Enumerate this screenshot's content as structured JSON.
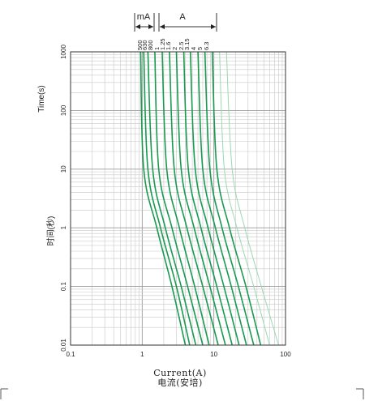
{
  "chart_data": {
    "type": "line",
    "title": "",
    "xscale": "log",
    "yscale": "log",
    "xlim": [
      0.1,
      100
    ],
    "ylim": [
      0.01,
      1000
    ],
    "xlabel": "Current(A)",
    "xlabel_cn": "电流(安培)",
    "ylabel": "Time(s)",
    "ylabel_cn": "时间(秒)",
    "xticks": [
      "0.1",
      "1",
      "10",
      "100"
    ],
    "yticks": [
      "1000",
      "100",
      "10",
      "1",
      "0.1",
      "0.01"
    ],
    "unit_groups": [
      {
        "label": "mA",
        "ratings": [
          "500",
          "630",
          "800"
        ]
      },
      {
        "label": "A",
        "ratings": [
          "1",
          "1.25",
          "1.6",
          "2",
          "2.5",
          "3.15",
          "4",
          "5",
          "6.3"
        ]
      }
    ],
    "grid": true,
    "colors": {
      "curve": "#1a9a50",
      "curve_light": "#9bd8b0",
      "grid": "#c8c8c8",
      "frame": "#333333"
    },
    "series": [
      {
        "name": "500",
        "points": [
          [
            0.95,
            1000
          ],
          [
            1.05,
            10
          ],
          [
            1.6,
            1
          ],
          [
            2.6,
            0.1
          ],
          [
            4.0,
            0.01
          ]
        ]
      },
      {
        "name": "630",
        "points": [
          [
            1.05,
            1000
          ],
          [
            1.2,
            10
          ],
          [
            1.8,
            1
          ],
          [
            3.0,
            0.1
          ],
          [
            4.6,
            0.01
          ]
        ]
      },
      {
        "name": "800",
        "points": [
          [
            1.2,
            1000
          ],
          [
            1.4,
            10
          ],
          [
            2.1,
            1
          ],
          [
            3.5,
            0.1
          ],
          [
            5.6,
            0.01
          ]
        ]
      },
      {
        "name": "1",
        "points": [
          [
            1.5,
            1000
          ],
          [
            1.7,
            10
          ],
          [
            2.6,
            1
          ],
          [
            4.3,
            0.1
          ],
          [
            7.0,
            0.01
          ]
        ]
      },
      {
        "name": "1.25",
        "points": [
          [
            1.9,
            1000
          ],
          [
            2.2,
            10
          ],
          [
            3.3,
            1
          ],
          [
            5.4,
            0.1
          ],
          [
            8.6,
            0.01
          ]
        ]
      },
      {
        "name": "1.6",
        "points": [
          [
            2.4,
            1000
          ],
          [
            2.8,
            10
          ],
          [
            4.2,
            1
          ],
          [
            7.0,
            0.1
          ],
          [
            11.5,
            0.01
          ]
        ]
      },
      {
        "name": "2",
        "points": [
          [
            3.0,
            1000
          ],
          [
            3.5,
            10
          ],
          [
            5.3,
            1
          ],
          [
            8.8,
            0.1
          ],
          [
            14.5,
            0.01
          ]
        ]
      },
      {
        "name": "2.5",
        "points": [
          [
            3.8,
            1000
          ],
          [
            4.4,
            10
          ],
          [
            6.6,
            1
          ],
          [
            11,
            0.1
          ],
          [
            18,
            0.01
          ]
        ]
      },
      {
        "name": "3.15",
        "points": [
          [
            4.7,
            1000
          ],
          [
            5.5,
            10
          ],
          [
            8.3,
            1
          ],
          [
            13.8,
            0.1
          ],
          [
            22.5,
            0.01
          ]
        ]
      },
      {
        "name": "4",
        "points": [
          [
            6.0,
            1000
          ],
          [
            7.0,
            10
          ],
          [
            10.5,
            1
          ],
          [
            17.5,
            0.1
          ],
          [
            28.5,
            0.01
          ]
        ]
      },
      {
        "name": "5",
        "points": [
          [
            7.5,
            1000
          ],
          [
            8.8,
            10
          ],
          [
            13,
            1
          ],
          [
            22,
            0.1
          ],
          [
            36,
            0.01
          ]
        ]
      },
      {
        "name": "6.3",
        "points": [
          [
            9.5,
            1000
          ],
          [
            11,
            10
          ],
          [
            16.5,
            1
          ],
          [
            28,
            0.1
          ],
          [
            45,
            0.01
          ]
        ]
      },
      {
        "name": "",
        "light": true,
        "points": [
          [
            12,
            1000
          ],
          [
            14,
            10
          ],
          [
            21,
            1
          ],
          [
            36,
            0.1
          ],
          [
            60,
            0.01
          ]
        ]
      },
      {
        "name": "",
        "light": true,
        "points": [
          [
            15,
            1000
          ],
          [
            18,
            10
          ],
          [
            27,
            1
          ],
          [
            46,
            0.1
          ],
          [
            80,
            0.01
          ]
        ]
      }
    ]
  }
}
